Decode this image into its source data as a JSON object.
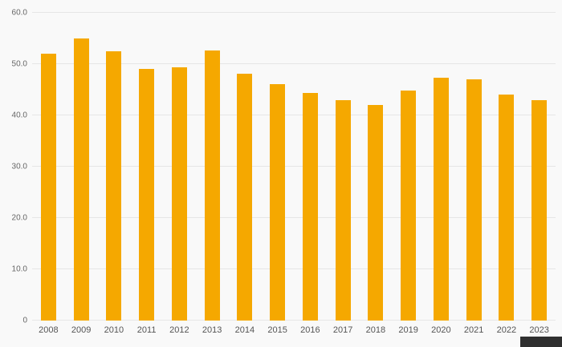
{
  "chart_data": {
    "type": "bar",
    "title": "",
    "xlabel": "",
    "ylabel": "",
    "categories": [
      "2008",
      "2009",
      "2010",
      "2011",
      "2012",
      "2013",
      "2014",
      "2015",
      "2016",
      "2017",
      "2018",
      "2019",
      "2020",
      "2021",
      "2022",
      "2023"
    ],
    "values": [
      52.0,
      55.0,
      52.5,
      49.0,
      49.3,
      52.7,
      48.2,
      46.1,
      44.3,
      42.9,
      42.1,
      44.8,
      47.3,
      47.0,
      44.0,
      43.0
    ],
    "ylim": [
      0,
      60
    ],
    "yticks": [
      0,
      10,
      20,
      30,
      40,
      50,
      60
    ],
    "ytick_labels": [
      "0",
      "10.0",
      "20.0",
      "30.0",
      "40.0",
      "50.0",
      "60.0"
    ],
    "grid": "horizontal",
    "legend_position": "none",
    "bar_color": "#f5a800",
    "background_color": "#f9f9f9",
    "gridline_color": "#e6e6e6",
    "axis_text_color": "#666666"
  }
}
